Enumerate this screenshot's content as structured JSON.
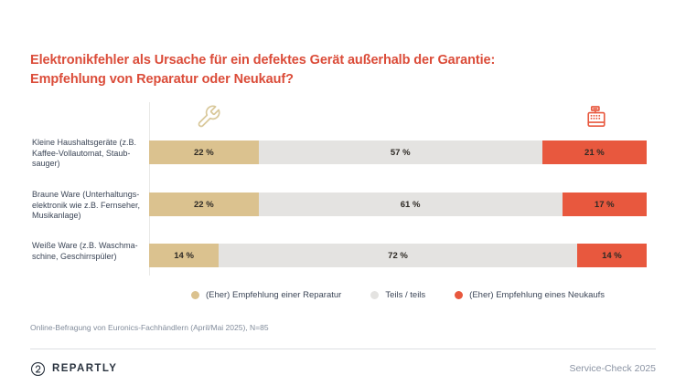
{
  "title": {
    "line1": "Elektronikfehler als Ursache für ein defektes Gerät außerhalb der Garantie:",
    "line2": "Empfehlung von Reparatur oder Neukauf?"
  },
  "colors": {
    "title_red": "#db4c39",
    "repair_tan": "#dbc28f",
    "neutral_gray": "#e4e3e1",
    "new_purchase_red": "#e8583e",
    "label_text": "#3c4657",
    "muted_text": "#828c9b"
  },
  "icons": {
    "left": "wrench-icon",
    "right": "cash-register-icon"
  },
  "chart_data": {
    "type": "bar",
    "orientation": "horizontal-stacked",
    "xlim": [
      0,
      100
    ],
    "value_suffix": " %",
    "legend_position": "bottom",
    "grid": false,
    "categories": [
      "Kleine Haushaltsgeräte (z.B.\nKaffee-Vollautomat, Staub-\nsauger)",
      "Braune Ware (Unterhaltungs-\nelektronik wie z.B. Fernseher,\nMusikanlage)",
      "Weiße Ware (z.B. Waschma-\nschine, Geschirrspüler)"
    ],
    "series": [
      {
        "name": "(Eher) Empfehlung einer Reparatur",
        "color": "#dbc28f",
        "values": [
          22,
          22,
          14
        ]
      },
      {
        "name": "Teils / teils",
        "color": "#e4e3e1",
        "values": [
          57,
          61,
          72
        ]
      },
      {
        "name": "(Eher) Empfehlung eines Neukaufs",
        "color": "#e8583e",
        "values": [
          21,
          17,
          14
        ]
      }
    ]
  },
  "legend": [
    {
      "label": "(Eher) Empfehlung einer Reparatur",
      "color": "#dbc28f"
    },
    {
      "label": "Teils / teils",
      "color": "#e4e3e1"
    },
    {
      "label": "(Eher) Empfehlung eines Neukaufs",
      "color": "#e8583e"
    }
  ],
  "source_note": "Online-Befragung von Euronics-Fachhändlern (April/Mai 2025), N=85",
  "footer": {
    "brand": "REPARTLY",
    "edition": "Service-Check 2025"
  }
}
